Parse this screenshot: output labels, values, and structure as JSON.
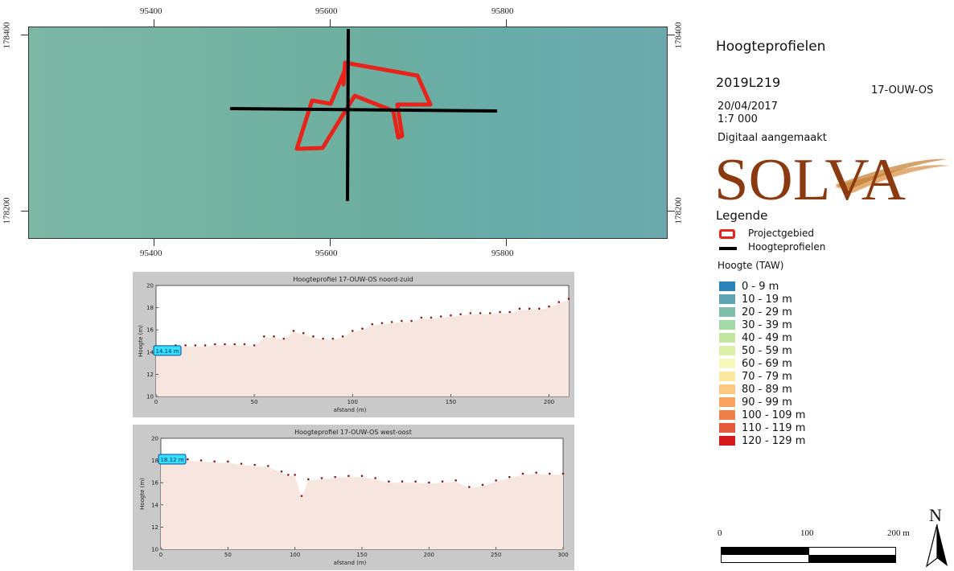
{
  "map": {
    "x_ticks_top": [
      "95400",
      "95600",
      "95800"
    ],
    "x_ticks_bottom": [
      "95400",
      "95600",
      "95800"
    ],
    "y_ticks_left": [
      "178400",
      "178200"
    ],
    "y_ticks_right": [
      "178400",
      "178200"
    ],
    "background_color": "#74b3a2",
    "project_area_color": "#e8231a",
    "profile_line_color": "#000000"
  },
  "profile1": {
    "title": "Hoogteprofiel 17-OUW-OS noord-zuid",
    "ylabel": "Hoogte (m)",
    "xlabel": "afstand (m)",
    "marker_label": "14.14 m",
    "fill_color": "#f7e6e0",
    "background_color": "#c9c9c9"
  },
  "profile2": {
    "title": "Hoogteprofiel 17-OUW-OS west-oost",
    "ylabel": "Hoogte (m)",
    "xlabel": "afstand (m)",
    "marker_label": "18.12 m",
    "fill_color": "#f7e6e0",
    "background_color": "#c9c9c9"
  },
  "chart_data": [
    {
      "type": "area",
      "title": "Hoogteprofiel 17-OUW-OS noord-zuid",
      "xlabel": "afstand (m)",
      "ylabel": "Hoogte (m)",
      "xlim": [
        0,
        210
      ],
      "ylim": [
        10,
        20
      ],
      "x_ticks": [
        "0",
        "50",
        "100",
        "150",
        "200"
      ],
      "y_ticks": [
        "10",
        "12",
        "14",
        "16",
        "18",
        "20"
      ],
      "x": [
        0,
        5,
        10,
        15,
        20,
        25,
        30,
        35,
        40,
        45,
        50,
        55,
        60,
        65,
        70,
        75,
        80,
        85,
        90,
        95,
        100,
        105,
        110,
        115,
        120,
        125,
        130,
        135,
        140,
        145,
        150,
        155,
        160,
        165,
        170,
        175,
        180,
        185,
        190,
        195,
        200,
        205,
        210
      ],
      "values": [
        14.14,
        14.3,
        14.5,
        14.5,
        14.5,
        14.5,
        14.6,
        14.6,
        14.6,
        14.6,
        14.5,
        15.3,
        15.3,
        15.1,
        15.8,
        15.6,
        15.3,
        15.1,
        15.1,
        15.3,
        15.8,
        16.0,
        16.4,
        16.5,
        16.6,
        16.7,
        16.7,
        17.0,
        17.0,
        17.1,
        17.2,
        17.3,
        17.4,
        17.4,
        17.4,
        17.5,
        17.5,
        17.8,
        17.8,
        17.8,
        18.0,
        18.4,
        18.7
      ]
    },
    {
      "type": "area",
      "title": "Hoogteprofiel 17-OUW-OS west-oost",
      "xlabel": "afstand (m)",
      "ylabel": "Hoogte (m)",
      "xlim": [
        0,
        300
      ],
      "ylim": [
        10,
        20
      ],
      "x_ticks": [
        "0",
        "50",
        "100",
        "150",
        "200",
        "250",
        "300"
      ],
      "y_ticks": [
        "10",
        "12",
        "14",
        "16",
        "18",
        "20"
      ],
      "x": [
        0,
        10,
        20,
        30,
        40,
        50,
        60,
        70,
        80,
        90,
        95,
        100,
        105,
        110,
        120,
        130,
        140,
        150,
        160,
        170,
        180,
        190,
        200,
        210,
        220,
        230,
        240,
        250,
        260,
        270,
        280,
        290,
        300
      ],
      "values": [
        18.12,
        18.0,
        18.0,
        17.9,
        17.8,
        17.8,
        17.6,
        17.5,
        17.4,
        16.9,
        16.6,
        16.6,
        14.7,
        16.2,
        16.3,
        16.4,
        16.5,
        16.5,
        16.3,
        16.0,
        16.0,
        16.0,
        15.9,
        16.0,
        16.1,
        15.5,
        15.7,
        16.1,
        16.4,
        16.7,
        16.8,
        16.7,
        16.7
      ]
    }
  ],
  "sidebar": {
    "title": "Hoogteprofielen",
    "project_code": "2019L219",
    "site_code": "17-OUW-OS",
    "date": "20/04/2017",
    "scale": "1:7 000",
    "made_by": "Digitaal aangemaakt",
    "logo_text": "SOLVA",
    "logo_color": "#8b3a10",
    "legend_title": "Legende",
    "legend_project": "Projectgebied",
    "legend_profiles": "Hoogteprofielen",
    "height_title": "Hoogte (TAW)",
    "classes": [
      {
        "label": "0 - 9 m",
        "color": "#2b83ba"
      },
      {
        "label": "10 - 19 m",
        "color": "#5ea4b3"
      },
      {
        "label": "20 - 29 m",
        "color": "#80bfac"
      },
      {
        "label": "30 - 39 m",
        "color": "#a3d9a4"
      },
      {
        "label": "40 - 49 m",
        "color": "#c2e6a0"
      },
      {
        "label": "50 - 59 m",
        "color": "#dcf0a8"
      },
      {
        "label": "60 - 69 m",
        "color": "#f5f9be"
      },
      {
        "label": "70 - 79 m",
        "color": "#fee8a0"
      },
      {
        "label": "80 - 89 m",
        "color": "#fdc981"
      },
      {
        "label": "90 - 99 m",
        "color": "#f9a35e"
      },
      {
        "label": "100 - 109 m",
        "color": "#f0804a"
      },
      {
        "label": "110 - 119 m",
        "color": "#e45a3b"
      },
      {
        "label": "120 - 129 m",
        "color": "#d7191c"
      }
    ],
    "scalebar_labels": [
      "0",
      "100",
      "200 m"
    ],
    "north_label": "N"
  }
}
